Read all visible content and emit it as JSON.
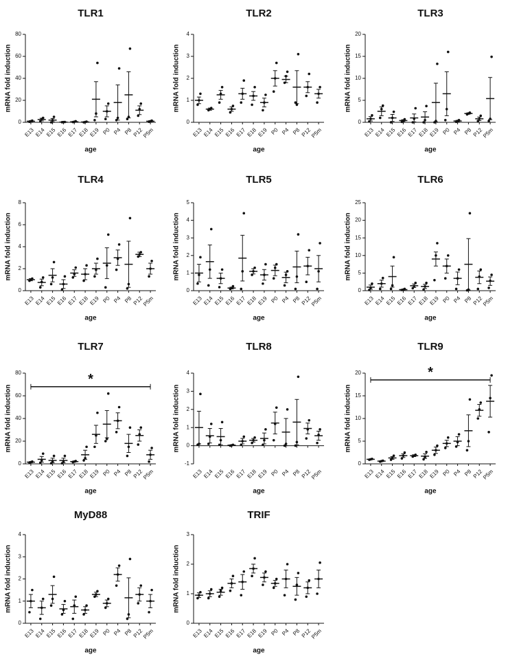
{
  "chart_data": [
    {
      "type": "scatter",
      "title": "TLR1",
      "ylabel": "mRNA fold induction",
      "xlabel": "age",
      "categories": [
        "E13",
        "E14",
        "E15",
        "E16",
        "E17",
        "E18",
        "E19",
        "P0",
        "P4",
        "P8",
        "P12",
        "P5m"
      ],
      "ylim": [
        0,
        80
      ],
      "yticks": [
        0,
        20,
        40,
        60,
        80
      ],
      "means": [
        1,
        2.5,
        2,
        0.2,
        0.5,
        0.3,
        21,
        10,
        18,
        25,
        11,
        1
      ],
      "errors": [
        0.5,
        1.2,
        1.5,
        0.1,
        0.3,
        0.2,
        16,
        5,
        16,
        21,
        4,
        0.5
      ],
      "points": [
        [
          0.5,
          1,
          1.5
        ],
        [
          1,
          3,
          4
        ],
        [
          0,
          2,
          5
        ],
        [
          0.1,
          0.2,
          0.3
        ],
        [
          0.2,
          0.5,
          1
        ],
        [
          0,
          0.3,
          0.6
        ],
        [
          2,
          8,
          54
        ],
        [
          3,
          10,
          17
        ],
        [
          2,
          4,
          49
        ],
        [
          3,
          5,
          67
        ],
        [
          6,
          12,
          17
        ],
        [
          0.5,
          1,
          1.5
        ]
      ]
    },
    {
      "type": "scatter",
      "title": "TLR2",
      "ylabel": "mRNA fold induction",
      "xlabel": "age",
      "categories": [
        "E13",
        "E14",
        "E15",
        "E16",
        "E17",
        "E18",
        "E19",
        "P0",
        "P4",
        "P8",
        "P12",
        "P5m"
      ],
      "ylim": [
        0,
        4
      ],
      "yticks": [
        0,
        1,
        2,
        3,
        4
      ],
      "means": [
        1,
        0.6,
        1.25,
        0.6,
        1.3,
        1.2,
        0.9,
        2,
        1.95,
        1.6,
        1.6,
        1.3
      ],
      "errors": [
        0.15,
        0.05,
        0.2,
        0.1,
        0.25,
        0.2,
        0.2,
        0.35,
        0.15,
        0.75,
        0.25,
        0.2
      ],
      "points": [
        [
          0.8,
          1,
          1.3
        ],
        [
          0.55,
          0.6,
          0.65
        ],
        [
          0.9,
          1.3,
          1.6
        ],
        [
          0.45,
          0.6,
          0.75
        ],
        [
          0.9,
          1.3,
          1.9
        ],
        [
          0.8,
          1.2,
          1.6
        ],
        [
          0.55,
          0.9,
          1.25
        ],
        [
          1.4,
          2,
          2.7
        ],
        [
          1.8,
          2.1,
          2.3
        ],
        [
          0.9,
          0.8,
          3.1
        ],
        [
          1.2,
          1.6,
          2.2
        ],
        [
          0.9,
          1.3,
          1.6
        ]
      ]
    },
    {
      "type": "scatter",
      "title": "TLR3",
      "ylabel": "mRNA fold induction",
      "xlabel": "age",
      "categories": [
        "E13",
        "E14",
        "E15",
        "E16",
        "E17",
        "E18",
        "E19",
        "P0",
        "P4",
        "P8",
        "P12",
        "P5m"
      ],
      "ylim": [
        0,
        20
      ],
      "yticks": [
        0,
        5,
        10,
        15,
        20
      ],
      "means": [
        0.8,
        2.5,
        1,
        0.4,
        1,
        1.2,
        4.5,
        6.5,
        0.3,
        2,
        0.8,
        5.4
      ],
      "errors": [
        0.5,
        1,
        0.8,
        0.2,
        0.9,
        1.2,
        4.4,
        5,
        0.15,
        0.15,
        0.4,
        4.8
      ],
      "points": [
        [
          0.2,
          0.8,
          1.6
        ],
        [
          1,
          3,
          3.8
        ],
        [
          0,
          1,
          2.4
        ],
        [
          0.1,
          0.3,
          0.7
        ],
        [
          0,
          0.8,
          3.2
        ],
        [
          0,
          0.5,
          3.7
        ],
        [
          0,
          0.3,
          13.3
        ],
        [
          0.5,
          3,
          16
        ],
        [
          0.1,
          0.3,
          0.5
        ],
        [
          1.8,
          2,
          2.2
        ],
        [
          0.3,
          0.8,
          1.5
        ],
        [
          0.3,
          0.8,
          14.9
        ]
      ]
    },
    {
      "type": "scatter",
      "title": "TLR4",
      "ylabel": "mRNA fold induction",
      "xlabel": "age",
      "categories": [
        "E13",
        "E14",
        "E15",
        "E16",
        "E17",
        "E18",
        "E19",
        "P0",
        "P4",
        "P8",
        "P12",
        "P5m"
      ],
      "ylim": [
        0,
        8
      ],
      "yticks": [
        0,
        2,
        4,
        6,
        8
      ],
      "means": [
        1,
        0.75,
        1.4,
        0.6,
        1.6,
        1.5,
        2,
        2.5,
        3,
        2.4,
        3.3,
        2
      ],
      "errors": [
        0.1,
        0.3,
        0.6,
        0.4,
        0.3,
        0.5,
        0.5,
        1.4,
        0.7,
        2.1,
        0.2,
        0.5
      ],
      "points": [
        [
          0.9,
          1,
          1.1
        ],
        [
          0.3,
          0.8,
          1.2
        ],
        [
          0.6,
          1.2,
          2.6
        ],
        [
          0.1,
          0.6,
          1.3
        ],
        [
          1.2,
          1.5,
          2.1
        ],
        [
          0.9,
          1.5,
          2.3
        ],
        [
          1.3,
          1.9,
          2.9
        ],
        [
          0.3,
          2.3,
          5.1
        ],
        [
          1.9,
          2.9,
          4.2
        ],
        [
          0.2,
          0.6,
          6.6
        ],
        [
          3.1,
          3.3,
          3.5
        ],
        [
          1.3,
          2,
          2.7
        ]
      ]
    },
    {
      "type": "scatter",
      "title": "TLR5",
      "ylabel": "mRNA fold induction",
      "xlabel": "age",
      "categories": [
        "E13",
        "E14",
        "E15",
        "E16",
        "E17",
        "E18",
        "E19",
        "P0",
        "P4",
        "P8",
        "P12",
        "P5m"
      ],
      "ylim": [
        0,
        5
      ],
      "yticks": [
        0,
        1,
        2,
        3,
        4,
        5
      ],
      "means": [
        1,
        1.65,
        0.7,
        0.15,
        1.85,
        1.1,
        0.9,
        1.15,
        0.75,
        1.35,
        1.4,
        1.25
      ],
      "errors": [
        0.5,
        0.95,
        0.3,
        0.05,
        1.3,
        0.15,
        0.3,
        0.3,
        0.3,
        0.9,
        0.5,
        0.75
      ],
      "points": [
        [
          0.4,
          0.9,
          1.9
        ],
        [
          0.3,
          1.2,
          3.5
        ],
        [
          0.2,
          0.7,
          1.2
        ],
        [
          0.1,
          0.15,
          0.25
        ],
        [
          0.1,
          1.1,
          4.4
        ],
        [
          0.9,
          1.1,
          1.3
        ],
        [
          0.4,
          0.9,
          1.5
        ],
        [
          0.7,
          1.3,
          1.5
        ],
        [
          0.3,
          0.9,
          1.1
        ],
        [
          0.1,
          0.8,
          3.2
        ],
        [
          0.5,
          1.4,
          2.3
        ],
        [
          0.1,
          1.1,
          2.7
        ]
      ]
    },
    {
      "type": "scatter",
      "title": "TLR6",
      "ylabel": "mRNA fold induction",
      "xlabel": "age",
      "categories": [
        "E13",
        "E14",
        "E15",
        "E16",
        "E17",
        "E18",
        "E19",
        "P0",
        "P4",
        "P8",
        "P12",
        "P5m"
      ],
      "ylim": [
        0,
        25
      ],
      "yticks": [
        0,
        5,
        10,
        15,
        20,
        25
      ],
      "means": [
        1,
        2,
        4,
        0.3,
        1.4,
        1.2,
        9,
        7,
        3.5,
        7.5,
        3.8,
        2.7
      ],
      "errors": [
        0.6,
        1,
        3,
        0.1,
        0.5,
        0.6,
        2,
        2,
        1.8,
        7.3,
        1.8,
        1.2
      ],
      "points": [
        [
          0.2,
          0.8,
          2
        ],
        [
          0.5,
          2,
          3.6
        ],
        [
          0.5,
          1.5,
          9.5
        ],
        [
          0.2,
          0.3,
          0.5
        ],
        [
          0.7,
          1.3,
          2.2
        ],
        [
          0.3,
          1.2,
          2.2
        ],
        [
          3,
          10,
          13.5
        ],
        [
          3.5,
          7,
          10
        ],
        [
          0.5,
          3.5,
          6
        ],
        [
          0.1,
          0.3,
          22
        ],
        [
          0.5,
          4,
          6
        ],
        [
          0.8,
          2.8,
          4.5
        ]
      ]
    },
    {
      "type": "scatter",
      "title": "TLR7",
      "ylabel": "mRNA fold induction",
      "xlabel": "age",
      "categories": [
        "E13",
        "E14",
        "E15",
        "E16",
        "E17",
        "E18",
        "E19",
        "P0",
        "P4",
        "P8",
        "P12",
        "P5m"
      ],
      "ylim": [
        0,
        80
      ],
      "yticks": [
        0,
        20,
        40,
        60,
        80
      ],
      "means": [
        1.5,
        4,
        3,
        3,
        2,
        8,
        26,
        35,
        38,
        18,
        25,
        8
      ],
      "errors": [
        0.5,
        2.5,
        2,
        2,
        0.5,
        4,
        8,
        12,
        7,
        8,
        5,
        4
      ],
      "points": [
        [
          1,
          1.5,
          2
        ],
        [
          1,
          3,
          9
        ],
        [
          0.5,
          2,
          7
        ],
        [
          0.5,
          2,
          7
        ],
        [
          1.5,
          2,
          2.5
        ],
        [
          3,
          5,
          15
        ],
        [
          15,
          25,
          45
        ],
        [
          20,
          22,
          62
        ],
        [
          28,
          38,
          50
        ],
        [
          7,
          15,
          32
        ],
        [
          17,
          26,
          32
        ],
        [
          2,
          8,
          14
        ]
      ],
      "annotation": {
        "text": "*",
        "y": 68
      }
    },
    {
      "type": "scatter",
      "title": "TLR8",
      "ylabel": "mRNA fold induction",
      "xlabel": "age",
      "categories": [
        "E13",
        "E14",
        "E15",
        "E16",
        "E17",
        "E18",
        "E19",
        "P0",
        "P4",
        "P8",
        "P12",
        "P5m"
      ],
      "ylim": [
        -1,
        4
      ],
      "yticks": [
        -1,
        0,
        1,
        2,
        3,
        4
      ],
      "means": [
        1,
        0.55,
        0.5,
        0.03,
        0.25,
        0.3,
        0.4,
        1.25,
        0.75,
        1.3,
        0.95,
        0.55
      ],
      "errors": [
        0.9,
        0.4,
        0.45,
        0.02,
        0.15,
        0.1,
        0.3,
        0.6,
        0.75,
        1.25,
        0.3,
        0.25
      ],
      "points": [
        [
          0.05,
          0.1,
          2.85
        ],
        [
          0.1,
          0.5,
          1.2
        ],
        [
          0.05,
          0.3,
          1.3
        ],
        [
          0,
          0.02,
          0.05
        ],
        [
          0.05,
          0.25,
          0.5
        ],
        [
          0.15,
          0.3,
          0.45
        ],
        [
          0.05,
          0.3,
          0.9
        ],
        [
          0.3,
          1.2,
          2.1
        ],
        [
          0,
          0.1,
          2
        ],
        [
          0,
          0.2,
          3.8
        ],
        [
          0.4,
          0.9,
          1.4
        ],
        [
          0.15,
          0.6,
          0.9
        ]
      ]
    },
    {
      "type": "scatter",
      "title": "TLR9",
      "ylabel": "mRNA fold induction",
      "xlabel": "age",
      "categories": [
        "E13",
        "E14",
        "E15",
        "E16",
        "E17",
        "E18",
        "E19",
        "P0",
        "P4",
        "P8",
        "P12",
        "P5m"
      ],
      "ylim": [
        0,
        20
      ],
      "yticks": [
        0,
        5,
        10,
        15,
        20
      ],
      "means": [
        1,
        0.6,
        1.3,
        1.8,
        1.8,
        1.7,
        3,
        4.5,
        5,
        7.3,
        11.8,
        13.8
      ],
      "errors": [
        0.1,
        0.1,
        0.3,
        0.4,
        0.2,
        0.5,
        0.7,
        0.7,
        1,
        3.5,
        1.3,
        3.5
      ],
      "points": [
        [
          0.9,
          1,
          1.1
        ],
        [
          0.5,
          0.6,
          0.7
        ],
        [
          0.9,
          1.3,
          1.8
        ],
        [
          1.2,
          1.8,
          2.5
        ],
        [
          1.6,
          1.8,
          2
        ],
        [
          1,
          1.5,
          2.6
        ],
        [
          2,
          3,
          4
        ],
        [
          3.5,
          4.5,
          5.8
        ],
        [
          3.8,
          4.8,
          6.5
        ],
        [
          3,
          5,
          14.2
        ],
        [
          10,
          12,
          13.5
        ],
        [
          7,
          14.5,
          19.5
        ]
      ],
      "annotation": {
        "text": "*",
        "y": 18.5
      }
    },
    {
      "type": "scatter",
      "title": "MyD88",
      "ylabel": "mRNA fold induction",
      "xlabel": "age",
      "categories": [
        "E13",
        "E14",
        "E15",
        "E16",
        "E17",
        "E18",
        "E19",
        "P0",
        "P4",
        "P8",
        "P12",
        "P5m"
      ],
      "ylim": [
        0,
        4
      ],
      "yticks": [
        0,
        1,
        2,
        3,
        4
      ],
      "means": [
        1,
        0.7,
        1.3,
        0.65,
        0.75,
        0.6,
        1.3,
        0.9,
        2.2,
        1.15,
        1.3,
        1
      ],
      "errors": [
        0.3,
        0.3,
        0.4,
        0.2,
        0.3,
        0.15,
        0.1,
        0.15,
        0.3,
        0.9,
        0.3,
        0.3
      ],
      "points": [
        [
          0.5,
          1,
          1.5
        ],
        [
          0.2,
          0.7,
          1.1
        ],
        [
          0.8,
          1.1,
          2.1
        ],
        [
          0.4,
          0.6,
          1
        ],
        [
          0.2,
          0.8,
          1.2
        ],
        [
          0.4,
          0.6,
          0.8
        ],
        [
          1.2,
          1.3,
          1.45
        ],
        [
          0.7,
          0.9,
          1.1
        ],
        [
          1.7,
          2.2,
          2.6
        ],
        [
          0.2,
          0.4,
          2.9
        ],
        [
          0.9,
          1.3,
          1.7
        ],
        [
          0.5,
          1,
          1.5
        ]
      ]
    },
    {
      "type": "scatter",
      "title": "TRIF",
      "ylabel": "mRNA fold induction",
      "xlabel": "age",
      "categories": [
        "E13",
        "E14",
        "E15",
        "E16",
        "E17",
        "E18",
        "E19",
        "P0",
        "P4",
        "P8",
        "P12",
        "P5m"
      ],
      "ylim": [
        0,
        3
      ],
      "yticks": [
        0,
        1,
        2,
        3
      ],
      "means": [
        0.95,
        1,
        1.05,
        1.35,
        1.4,
        1.85,
        1.55,
        1.35,
        1.5,
        1.25,
        1.2,
        1.5
      ],
      "errors": [
        0.08,
        0.1,
        0.1,
        0.15,
        0.25,
        0.15,
        0.15,
        0.1,
        0.3,
        0.3,
        0.2,
        0.3
      ],
      "points": [
        [
          0.85,
          0.95,
          1.05
        ],
        [
          0.85,
          1,
          1.15
        ],
        [
          0.9,
          1.1,
          1.2
        ],
        [
          1.1,
          1.35,
          1.6
        ],
        [
          0.95,
          1.4,
          1.75
        ],
        [
          1.6,
          1.85,
          2.2
        ],
        [
          1.3,
          1.55,
          1.75
        ],
        [
          1.2,
          1.35,
          1.5
        ],
        [
          0.95,
          1.5,
          2
        ],
        [
          0.8,
          1.3,
          1.7
        ],
        [
          0.9,
          1.2,
          1.45
        ],
        [
          1,
          1.5,
          2.05
        ]
      ]
    }
  ]
}
